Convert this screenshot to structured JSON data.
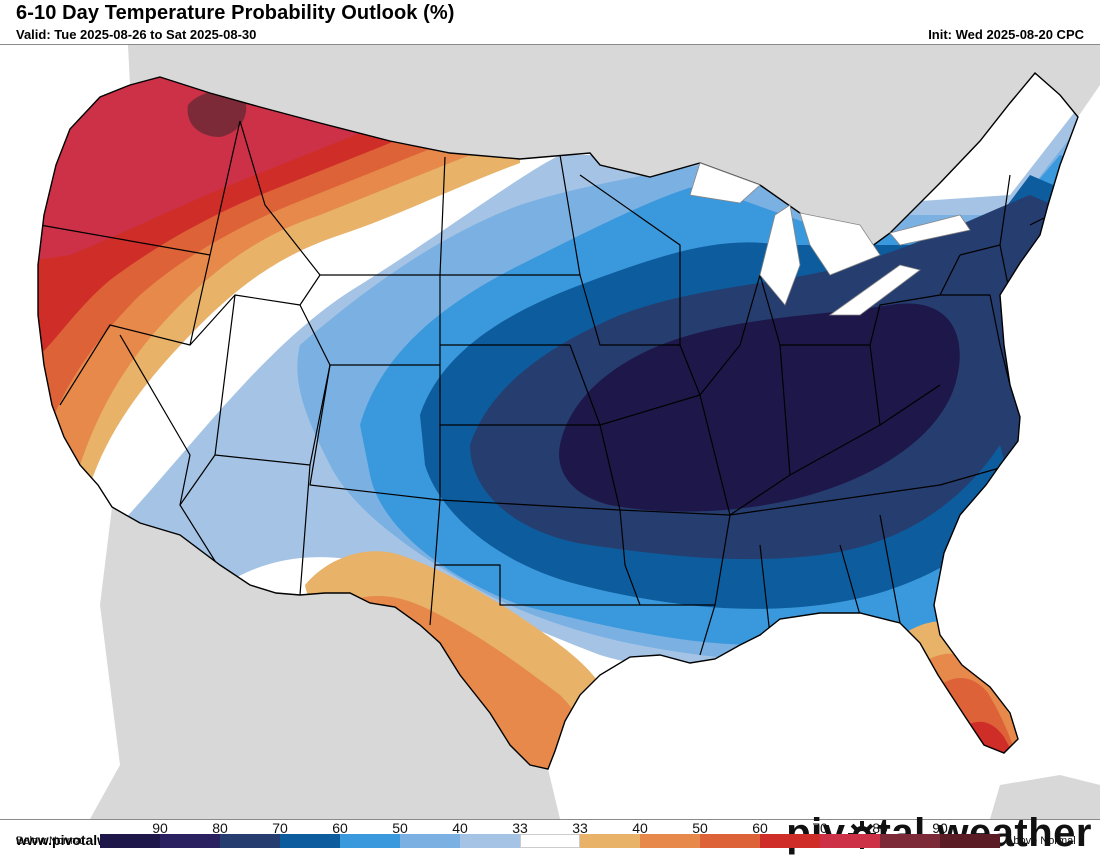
{
  "header": {
    "title": "6-10 Day Temperature Probability Outlook (%)",
    "valid": "Valid: Tue 2025-08-26 to Sat 2025-08-30",
    "init": "Init: Wed 2025-08-20 CPC"
  },
  "footer": {
    "website": "www.pivotalweather.com",
    "logo_left": "piv",
    "logo_right": "tal weather"
  },
  "legend": {
    "left_label": "Below Normal",
    "right_label": "Above Normal",
    "ticks": [
      "90",
      "80",
      "70",
      "60",
      "50",
      "40",
      "33",
      "33",
      "40",
      "50",
      "60",
      "70",
      "80",
      "90"
    ],
    "colors": [
      "#1d1849",
      "#2a2160",
      "#263d6f",
      "#0d5d9e",
      "#3a98dc",
      "#7ab1e2",
      "#a5c4e5",
      "#ffffff",
      "#e8b268",
      "#e6894a",
      "#dd6238",
      "#cf2d28",
      "#cc3148",
      "#7d2a38",
      "#5b1c26"
    ]
  },
  "map": {
    "colors": {
      "ocean": "#ffffff",
      "land_outside": "#d8d8d8",
      "below_33": "#a5c4e5",
      "below_40": "#7ab1e2",
      "below_50": "#3a98dc",
      "below_60": "#0d5d9e",
      "below_70": "#263d6f",
      "below_80": "#1d1849",
      "above_40": "#e8b268",
      "above_50": "#e6894a",
      "above_60": "#dd6238",
      "above_70": "#cf2d28",
      "above_80": "#cc3148",
      "above_90": "#7d2a38"
    }
  }
}
